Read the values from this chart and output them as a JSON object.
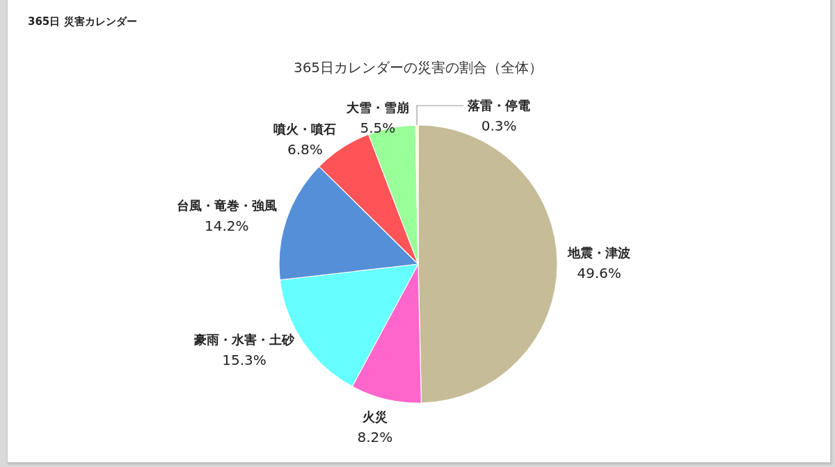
{
  "chart_data": {
    "type": "pie",
    "title": "365日カレンダーの災害の割合（全体）",
    "annotations": [
      "365日 災害カレンダー"
    ],
    "categories": [
      "地震・津波",
      "火災",
      "豪雨・水害・土砂",
      "台風・竜巻・強風",
      "噴火・噴石",
      "大雪・雪崩",
      "落雷・停電"
    ],
    "values": [
      49.6,
      8.2,
      15.3,
      14.2,
      6.8,
      5.5,
      0.3
    ],
    "value_labels": [
      "49.6%",
      "8.2%",
      "15.3%",
      "14.2%",
      "6.8%",
      "5.5%",
      "0.3%"
    ],
    "colors": [
      "#c6bd98",
      "#ff66cc",
      "#66ffff",
      "#558fd8",
      "#ff5457",
      "#99ff99",
      "#ffffcc"
    ]
  }
}
